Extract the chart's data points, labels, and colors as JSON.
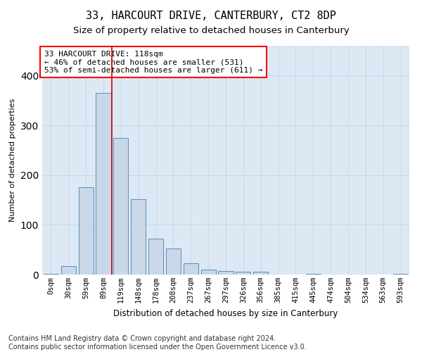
{
  "title1": "33, HARCOURT DRIVE, CANTERBURY, CT2 8DP",
  "title2": "Size of property relative to detached houses in Canterbury",
  "xlabel": "Distribution of detached houses by size in Canterbury",
  "ylabel": "Number of detached properties",
  "categories": [
    "0sqm",
    "30sqm",
    "59sqm",
    "89sqm",
    "119sqm",
    "148sqm",
    "178sqm",
    "208sqm",
    "237sqm",
    "267sqm",
    "297sqm",
    "326sqm",
    "356sqm",
    "385sqm",
    "415sqm",
    "445sqm",
    "474sqm",
    "504sqm",
    "534sqm",
    "563sqm",
    "593sqm"
  ],
  "values": [
    2,
    17,
    175,
    365,
    275,
    152,
    72,
    53,
    22,
    10,
    7,
    6,
    6,
    0,
    0,
    2,
    0,
    0,
    0,
    0,
    2
  ],
  "bar_color": "#c8d8e8",
  "bar_edge_color": "#5b8db8",
  "property_bin_index": 3,
  "annotation_line1": "33 HARCOURT DRIVE: 118sqm",
  "annotation_line2": "← 46% of detached houses are smaller (531)",
  "annotation_line3": "53% of semi-detached houses are larger (611) →",
  "annotation_box_color": "white",
  "annotation_box_edge": "red",
  "red_line_color": "#cc0000",
  "grid_color": "#c8d8e8",
  "background_color": "#dce8f4",
  "footer1": "Contains HM Land Registry data © Crown copyright and database right 2024.",
  "footer2": "Contains public sector information licensed under the Open Government Licence v3.0.",
  "ylim": [
    0,
    460
  ],
  "title1_fontsize": 11,
  "title2_fontsize": 9.5,
  "xlabel_fontsize": 8.5,
  "ylabel_fontsize": 8,
  "tick_fontsize": 7.5,
  "annotation_fontsize": 8,
  "footer_fontsize": 7
}
